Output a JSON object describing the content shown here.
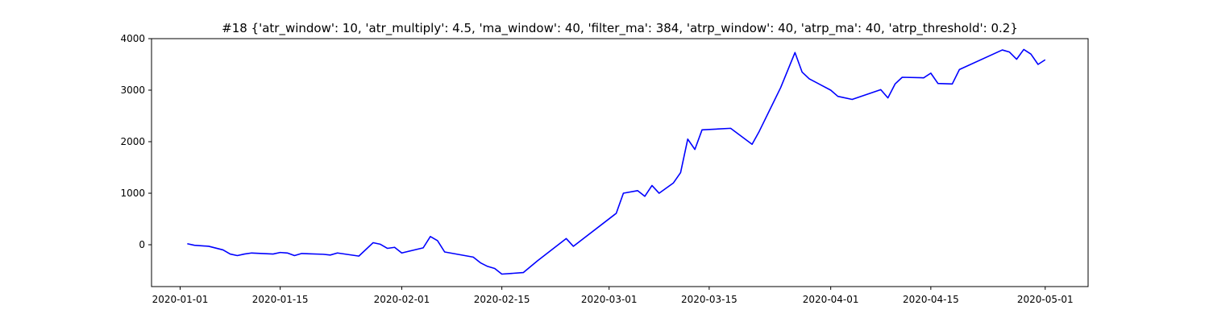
{
  "chart_data": {
    "type": "line",
    "title": "#18 {'atr_window': 10, 'atr_multiply': 4.5, 'ma_window': 40, 'filter_ma': 384, 'atrp_window': 40, 'atrp_ma': 40, 'atrp_threshold': 0.2}",
    "x": [
      "2020-01-02",
      "2020-01-03",
      "2020-01-05",
      "2020-01-07",
      "2020-01-08",
      "2020-01-09",
      "2020-01-10",
      "2020-01-11",
      "2020-01-14",
      "2020-01-15",
      "2020-01-16",
      "2020-01-17",
      "2020-01-18",
      "2020-01-21",
      "2020-01-22",
      "2020-01-23",
      "2020-01-26",
      "2020-01-28",
      "2020-01-29",
      "2020-01-30",
      "2020-01-31",
      "2020-02-01",
      "2020-02-04",
      "2020-02-05",
      "2020-02-06",
      "2020-02-07",
      "2020-02-11",
      "2020-02-12",
      "2020-02-13",
      "2020-02-14",
      "2020-02-15",
      "2020-02-18",
      "2020-02-20",
      "2020-02-24",
      "2020-02-25",
      "2020-03-02",
      "2020-03-03",
      "2020-03-05",
      "2020-03-06",
      "2020-03-07",
      "2020-03-08",
      "2020-03-10",
      "2020-03-11",
      "2020-03-12",
      "2020-03-13",
      "2020-03-14",
      "2020-03-18",
      "2020-03-21",
      "2020-03-22",
      "2020-03-25",
      "2020-03-27",
      "2020-03-28",
      "2020-03-29",
      "2020-04-01",
      "2020-04-02",
      "2020-04-04",
      "2020-04-08",
      "2020-04-09",
      "2020-04-10",
      "2020-04-11",
      "2020-04-14",
      "2020-04-15",
      "2020-04-16",
      "2020-04-18",
      "2020-04-19",
      "2020-04-25",
      "2020-04-26",
      "2020-04-27",
      "2020-04-28",
      "2020-04-29",
      "2020-04-30",
      "2020-05-01"
    ],
    "values": [
      20,
      -10,
      -30,
      -100,
      -180,
      -210,
      -180,
      -160,
      -180,
      -150,
      -160,
      -210,
      -170,
      -185,
      -200,
      -160,
      -220,
      40,
      10,
      -70,
      -50,
      -160,
      -60,
      160,
      80,
      -140,
      -240,
      -350,
      -420,
      -460,
      -570,
      -540,
      -310,
      120,
      -30,
      610,
      1000,
      1050,
      940,
      1150,
      1000,
      1200,
      1400,
      2050,
      1850,
      2230,
      2260,
      1950,
      2200,
      3050,
      3730,
      3350,
      3220,
      3000,
      2880,
      2820,
      3010,
      2850,
      3120,
      3250,
      3240,
      3330,
      3130,
      3120,
      3400,
      3780,
      3740,
      3600,
      3790,
      3700,
      3500,
      3590
    ],
    "color": "#0000ff",
    "xlim": [
      "2019-12-28",
      "2020-05-07"
    ],
    "xticks": [
      "2020-01-01",
      "2020-01-15",
      "2020-02-01",
      "2020-02-15",
      "2020-03-01",
      "2020-03-15",
      "2020-04-01",
      "2020-04-15",
      "2020-05-01"
    ],
    "ylim": [
      -812,
      4000
    ],
    "yticks": [
      0,
      1000,
      2000,
      3000,
      4000
    ]
  }
}
